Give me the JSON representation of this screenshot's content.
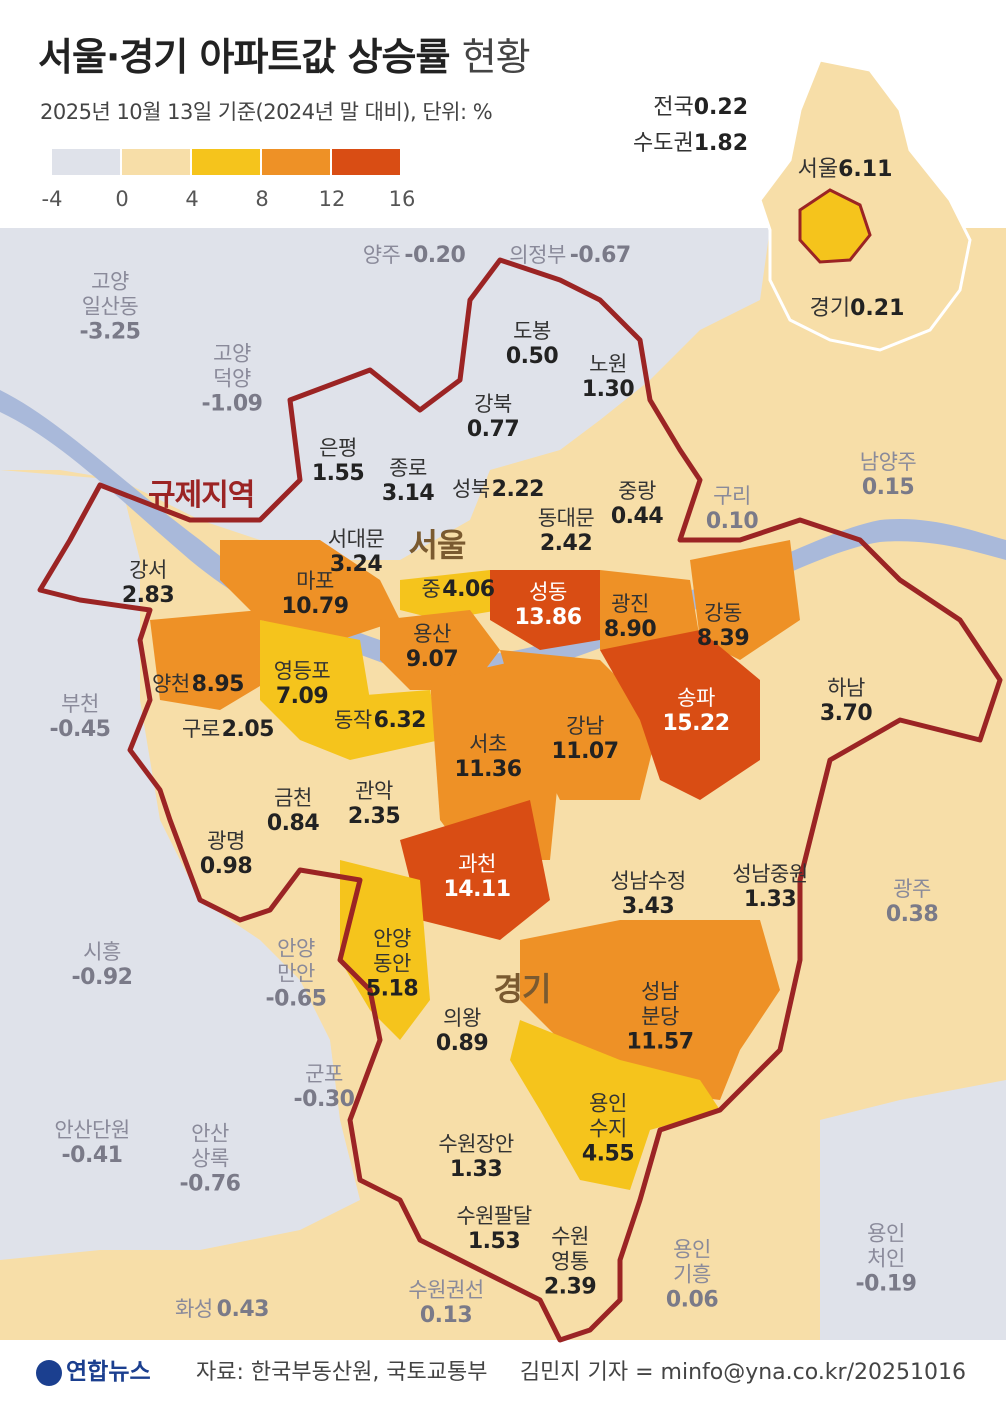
{
  "title": {
    "main": "서울·경기 아파트값 상승률",
    "tail": "현황"
  },
  "subtitle": "2025년 10월 13일 기준(2024년 말 대비), 단위: %",
  "legend": {
    "ticks": [
      "-4",
      "0",
      "4",
      "8",
      "12",
      "16"
    ],
    "colors": [
      "#dfe2ea",
      "#f7dea8",
      "#f5c41c",
      "#ee9126",
      "#d94d14"
    ]
  },
  "summary": {
    "nation_label": "전국",
    "nation_value": "0.22",
    "capital_label": "수도권",
    "capital_value": "1.82"
  },
  "inset": {
    "seoul_label": "서울",
    "seoul_value": "6.11",
    "gyeonggi_label": "경기",
    "gyeonggi_value": "0.21"
  },
  "labels": {
    "regulated_zone": "규제지역",
    "seoul": "서울",
    "gyeonggi": "경기"
  },
  "districts": [
    {
      "name": "도봉",
      "value": "0.50"
    },
    {
      "name": "노원",
      "value": "1.30"
    },
    {
      "name": "강북",
      "value": "0.77"
    },
    {
      "name": "은평",
      "value": "1.55"
    },
    {
      "name": "종로",
      "value": "3.14"
    },
    {
      "name": "성북",
      "value": "2.22"
    },
    {
      "name": "중랑",
      "value": "0.44"
    },
    {
      "name": "동대문",
      "value": "2.42"
    },
    {
      "name": "서대문",
      "value": "3.24"
    },
    {
      "name": "강서",
      "value": "2.83"
    },
    {
      "name": "마포",
      "value": "10.79"
    },
    {
      "name": "중",
      "value": "4.06"
    },
    {
      "name": "성동",
      "value": "13.86"
    },
    {
      "name": "광진",
      "value": "8.90"
    },
    {
      "name": "강동",
      "value": "8.39"
    },
    {
      "name": "용산",
      "value": "9.07"
    },
    {
      "name": "양천",
      "value": "8.95"
    },
    {
      "name": "영등포",
      "value": "7.09"
    },
    {
      "name": "송파",
      "value": "15.22"
    },
    {
      "name": "하남",
      "value": "3.70"
    },
    {
      "name": "구로",
      "value": "2.05"
    },
    {
      "name": "동작",
      "value": "6.32"
    },
    {
      "name": "서초",
      "value": "11.36"
    },
    {
      "name": "강남",
      "value": "11.07"
    },
    {
      "name": "금천",
      "value": "0.84"
    },
    {
      "name": "관악",
      "value": "2.35"
    },
    {
      "name": "광명",
      "value": "0.98"
    },
    {
      "name": "과천",
      "value": "14.11"
    },
    {
      "name": "성남수정",
      "value": "3.43"
    },
    {
      "name": "성남중원",
      "value": "1.33"
    },
    {
      "name": "안양동안",
      "value": "5.18"
    },
    {
      "name": "의왕",
      "value": "0.89"
    },
    {
      "name": "성남분당",
      "value": "11.57"
    },
    {
      "name": "용인수지",
      "value": "4.55"
    },
    {
      "name": "수원장안",
      "value": "1.33"
    },
    {
      "name": "수원팔달",
      "value": "1.53"
    },
    {
      "name": "수원영통",
      "value": "2.39"
    }
  ],
  "outside": [
    {
      "name": "양주",
      "value": "-0.20"
    },
    {
      "name": "의정부",
      "value": "-0.67"
    },
    {
      "name": "고양일산동",
      "value": "-3.25"
    },
    {
      "name": "고양덕양",
      "value": "-1.09"
    },
    {
      "name": "남양주",
      "value": "0.15"
    },
    {
      "name": "구리",
      "value": "0.10"
    },
    {
      "name": "부천",
      "value": "-0.45"
    },
    {
      "name": "광주",
      "value": "0.38"
    },
    {
      "name": "시흥",
      "value": "-0.92"
    },
    {
      "name": "안양만안",
      "value": "-0.65"
    },
    {
      "name": "군포",
      "value": "-0.30"
    },
    {
      "name": "안산단원",
      "value": "-0.41"
    },
    {
      "name": "안산상록",
      "value": "-0.76"
    },
    {
      "name": "용인기흥",
      "value": "0.06"
    },
    {
      "name": "용인처인",
      "value": "-0.19"
    },
    {
      "name": "수원권선",
      "value": "0.13"
    },
    {
      "name": "화성",
      "value": "0.43"
    }
  ],
  "footer": {
    "logo": "연합뉴스",
    "source": "자료: 한국부동산원, 국토교통부",
    "credit": "김민지 기자 = minfo@yna.co.kr/20251016"
  }
}
